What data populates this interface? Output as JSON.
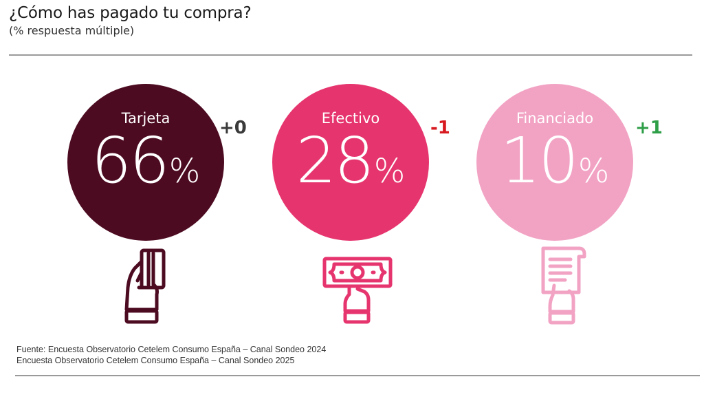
{
  "title": "¿Cómo has pagado tu compra?",
  "subtitle": "(% respuesta múltiple)",
  "chart_data": {
    "type": "bar",
    "categories": [
      "Tarjeta",
      "Efectivo",
      "Financiado"
    ],
    "values": [
      66,
      28,
      10
    ],
    "unit": "%",
    "changes": [
      "+0",
      "-1",
      "+1"
    ],
    "colors": [
      "#4d0b22",
      "#e6356e",
      "#f2a3c4"
    ],
    "change_colors": [
      "#3a3a3a",
      "#d71920",
      "#2e9e47"
    ]
  },
  "items": [
    {
      "label": "Tarjeta",
      "value": "66",
      "unit": "%",
      "change": "+0",
      "icon": "card-payment-icon"
    },
    {
      "label": "Efectivo",
      "value": "28",
      "unit": "%",
      "change": "-1",
      "icon": "cash-payment-icon"
    },
    {
      "label": "Financiado",
      "value": "10",
      "unit": "%",
      "change": "+1",
      "icon": "financing-document-icon"
    }
  ],
  "source": {
    "line1": "Fuente: Encuesta Observatorio Cetelem Consumo España – Canal Sondeo 2024",
    "line2": "Encuesta Observatorio Cetelem Consumo España – Canal Sondeo 2025"
  }
}
